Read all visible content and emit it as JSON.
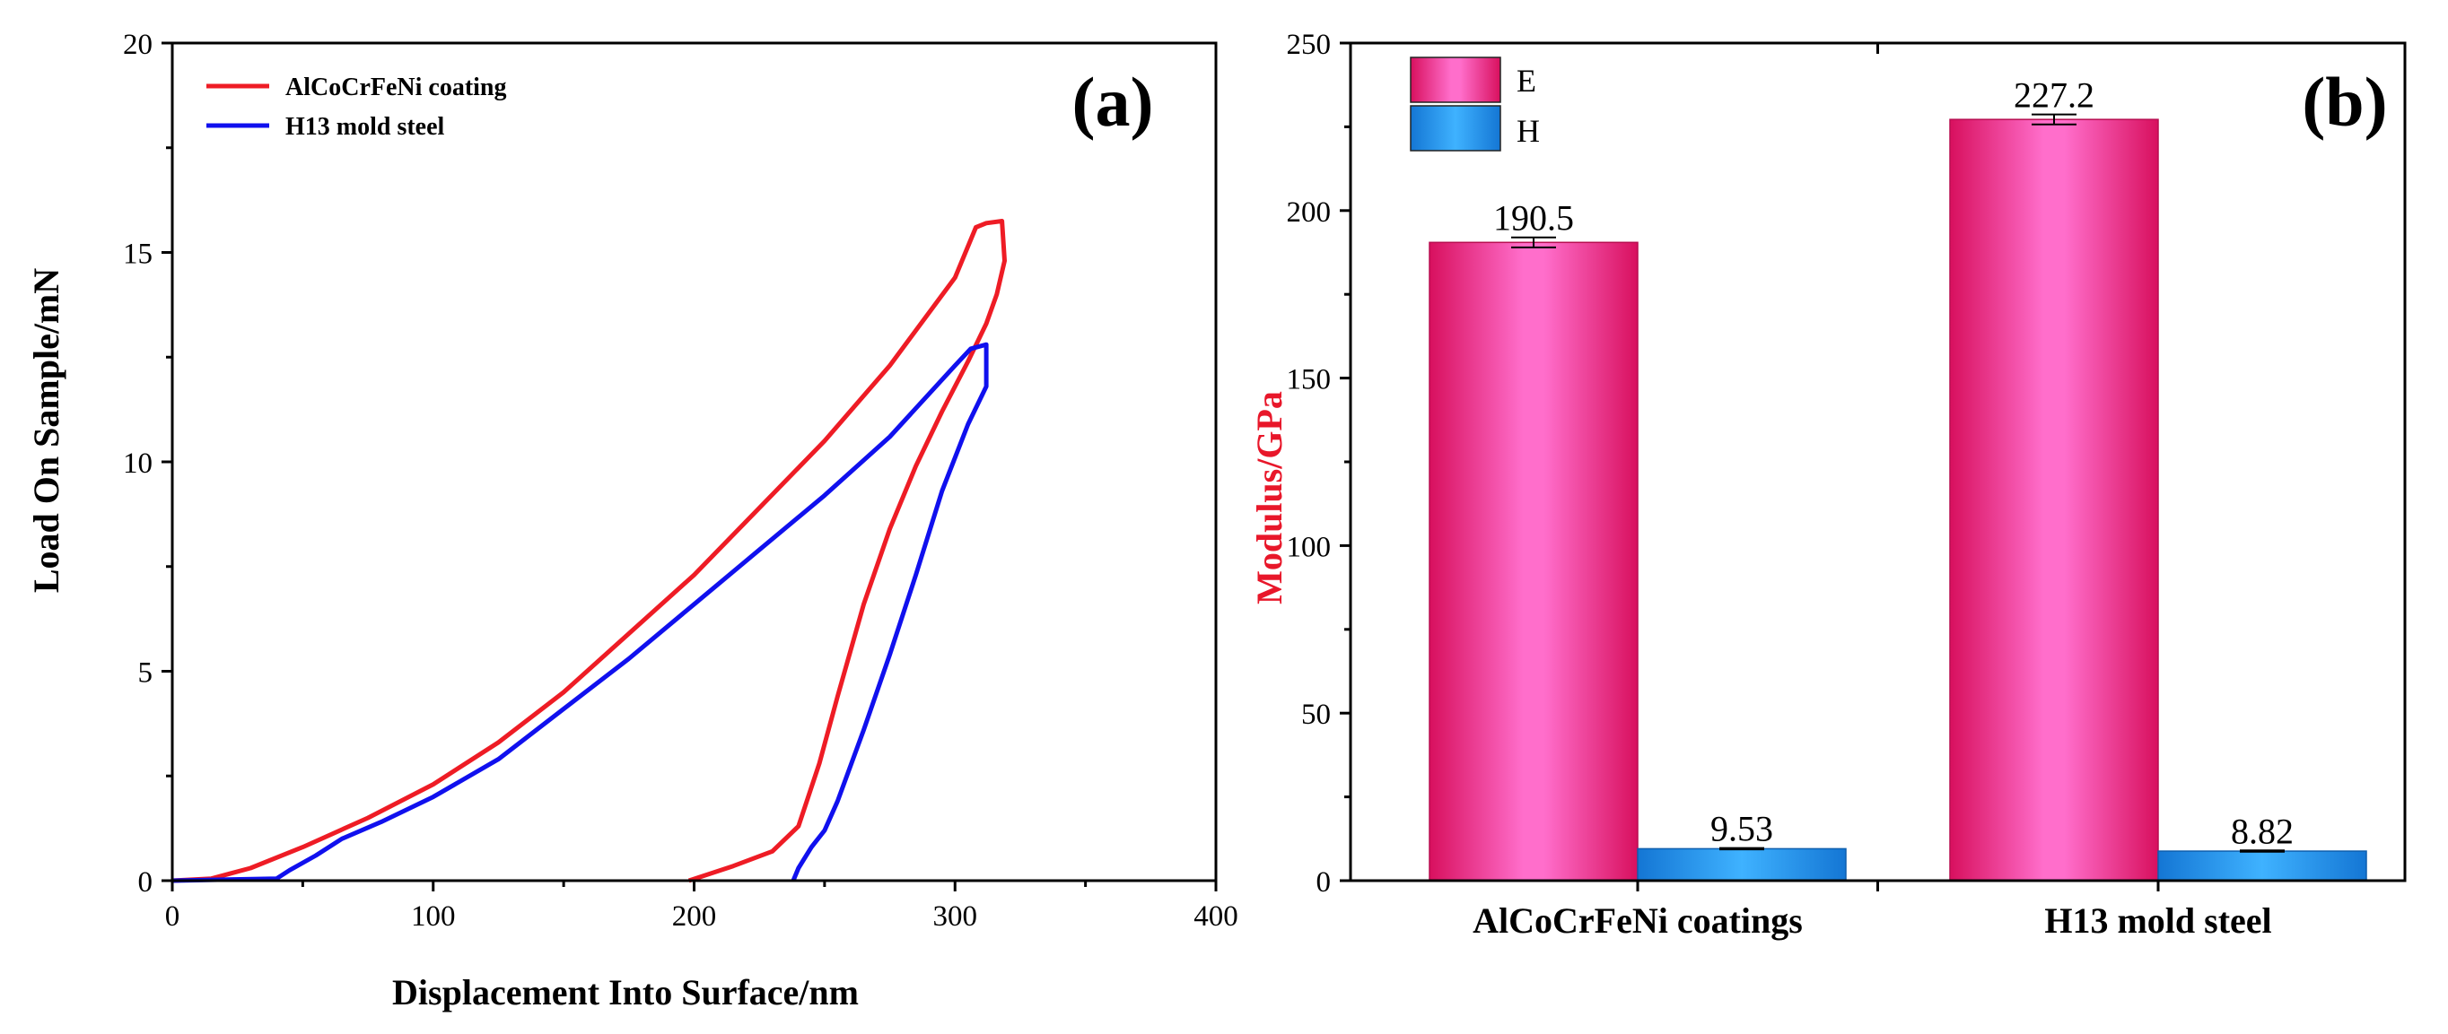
{
  "chart_data": [
    {
      "panel": "(a)",
      "type": "line",
      "xlabel": "Displacement Into Surface/nm",
      "ylabel": "Load On Sample/mN",
      "xlim": [
        0,
        400
      ],
      "ylim": [
        0,
        20
      ],
      "xticks": [
        0,
        100,
        200,
        300,
        400
      ],
      "yticks": [
        0,
        5,
        10,
        15,
        20
      ],
      "legend_position": "top-left",
      "series": [
        {
          "name": "AlCoCrFeNi coating",
          "color": "#ee1c25",
          "points": [
            [
              0,
              0
            ],
            [
              15,
              0.05
            ],
            [
              30,
              0.3
            ],
            [
              50,
              0.8
            ],
            [
              75,
              1.5
            ],
            [
              100,
              2.3
            ],
            [
              125,
              3.3
            ],
            [
              150,
              4.5
            ],
            [
              175,
              5.9
            ],
            [
              200,
              7.3
            ],
            [
              225,
              8.9
            ],
            [
              250,
              10.5
            ],
            [
              275,
              12.3
            ],
            [
              300,
              14.4
            ],
            [
              308,
              15.6
            ],
            [
              312,
              15.7
            ],
            [
              318,
              15.75
            ],
            [
              319,
              14.8
            ],
            [
              316,
              14.0
            ],
            [
              312,
              13.3
            ],
            [
              305,
              12.4
            ],
            [
              295,
              11.2
            ],
            [
              285,
              9.9
            ],
            [
              275,
              8.4
            ],
            [
              265,
              6.6
            ],
            [
              255,
              4.4
            ],
            [
              248,
              2.8
            ],
            [
              240,
              1.3
            ],
            [
              230,
              0.7
            ],
            [
              215,
              0.35
            ],
            [
              198,
              0
            ]
          ]
        },
        {
          "name": "H13 mold steel",
          "color": "#1010ee",
          "points": [
            [
              0,
              0
            ],
            [
              40,
              0.05
            ],
            [
              45,
              0.25
            ],
            [
              55,
              0.6
            ],
            [
              65,
              1.0
            ],
            [
              80,
              1.4
            ],
            [
              100,
              2.0
            ],
            [
              125,
              2.9
            ],
            [
              150,
              4.1
            ],
            [
              175,
              5.3
            ],
            [
              200,
              6.6
            ],
            [
              225,
              7.9
            ],
            [
              250,
              9.2
            ],
            [
              275,
              10.6
            ],
            [
              300,
              12.3
            ],
            [
              306,
              12.7
            ],
            [
              312,
              12.8
            ],
            [
              312,
              11.8
            ],
            [
              305,
              10.9
            ],
            [
              295,
              9.3
            ],
            [
              285,
              7.3
            ],
            [
              275,
              5.4
            ],
            [
              265,
              3.6
            ],
            [
              255,
              1.9
            ],
            [
              250,
              1.2
            ],
            [
              245,
              0.8
            ],
            [
              240,
              0.3
            ],
            [
              238,
              0
            ]
          ]
        }
      ]
    },
    {
      "panel": "(b)",
      "type": "bar",
      "ylabel": "Modulus/GPa",
      "ylim": [
        0,
        250
      ],
      "yticks": [
        0,
        50,
        100,
        150,
        200,
        250
      ],
      "categories": [
        "AlCoCrFeNi coatings",
        "H13 mold steel"
      ],
      "legend_position": "top-left",
      "series": [
        {
          "name": "E",
          "color": "#e8177a",
          "values": [
            190.5,
            227.2
          ],
          "labels": [
            "190.5",
            "227.2"
          ],
          "errors": [
            1.5,
            1.5
          ]
        },
        {
          "name": "H",
          "color": "#1e90e8",
          "values": [
            9.53,
            8.82
          ],
          "labels": [
            "9.53",
            "8.82"
          ],
          "errors": [
            0.2,
            0.2
          ]
        }
      ]
    }
  ]
}
